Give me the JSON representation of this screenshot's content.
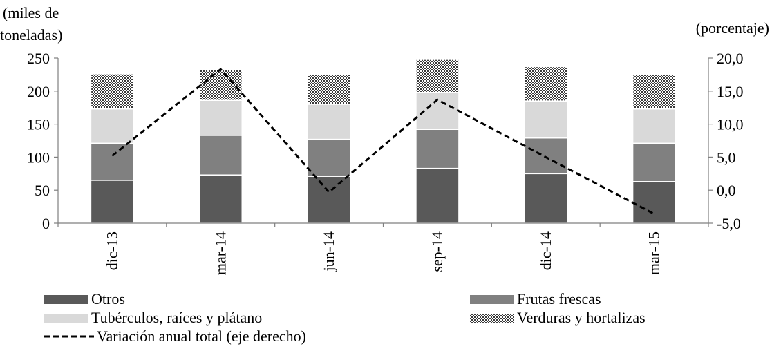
{
  "chart_data": {
    "type": "bar",
    "stacked": true,
    "categories": [
      "dic-13",
      "mar-14",
      "jun-14",
      "sep-14",
      "dic-14",
      "mar-15"
    ],
    "series": [
      {
        "name": "Otros",
        "values": [
          65,
          73,
          71,
          83,
          75,
          63
        ],
        "color": "#595959"
      },
      {
        "name": "Frutas frescas",
        "values": [
          56,
          60,
          56,
          59,
          54,
          58
        ],
        "color": "#808080"
      },
      {
        "name": "Tubérculos, raíces y plátano",
        "values": [
          52,
          53,
          53,
          56,
          56,
          52
        ],
        "color": "#d9d9d9"
      },
      {
        "name": "Verduras y hortalizas",
        "values": [
          53,
          47,
          45,
          50,
          52,
          52
        ],
        "color": "#9a9a9a",
        "pattern": "checker"
      }
    ],
    "line_series": {
      "name": "Variación anual total (eje derecho)",
      "values": [
        5.2,
        18.3,
        -0.3,
        13.7,
        5.0,
        -3.6
      ],
      "axis": "right",
      "style": "dashed",
      "color": "#000000"
    },
    "y_left": {
      "label_line1": "(miles de",
      "label_line2": "toneladas)",
      "min": 0,
      "max": 250,
      "ticks": [
        "0",
        "50",
        "100",
        "150",
        "200",
        "250"
      ]
    },
    "y_right": {
      "label": "(porcentaje)",
      "min": -5,
      "max": 20,
      "ticks": [
        "-5,0",
        "0,0",
        "5,0",
        "10,0",
        "15,0",
        "20,0"
      ]
    },
    "legend_position": "bottom",
    "grid": false
  }
}
